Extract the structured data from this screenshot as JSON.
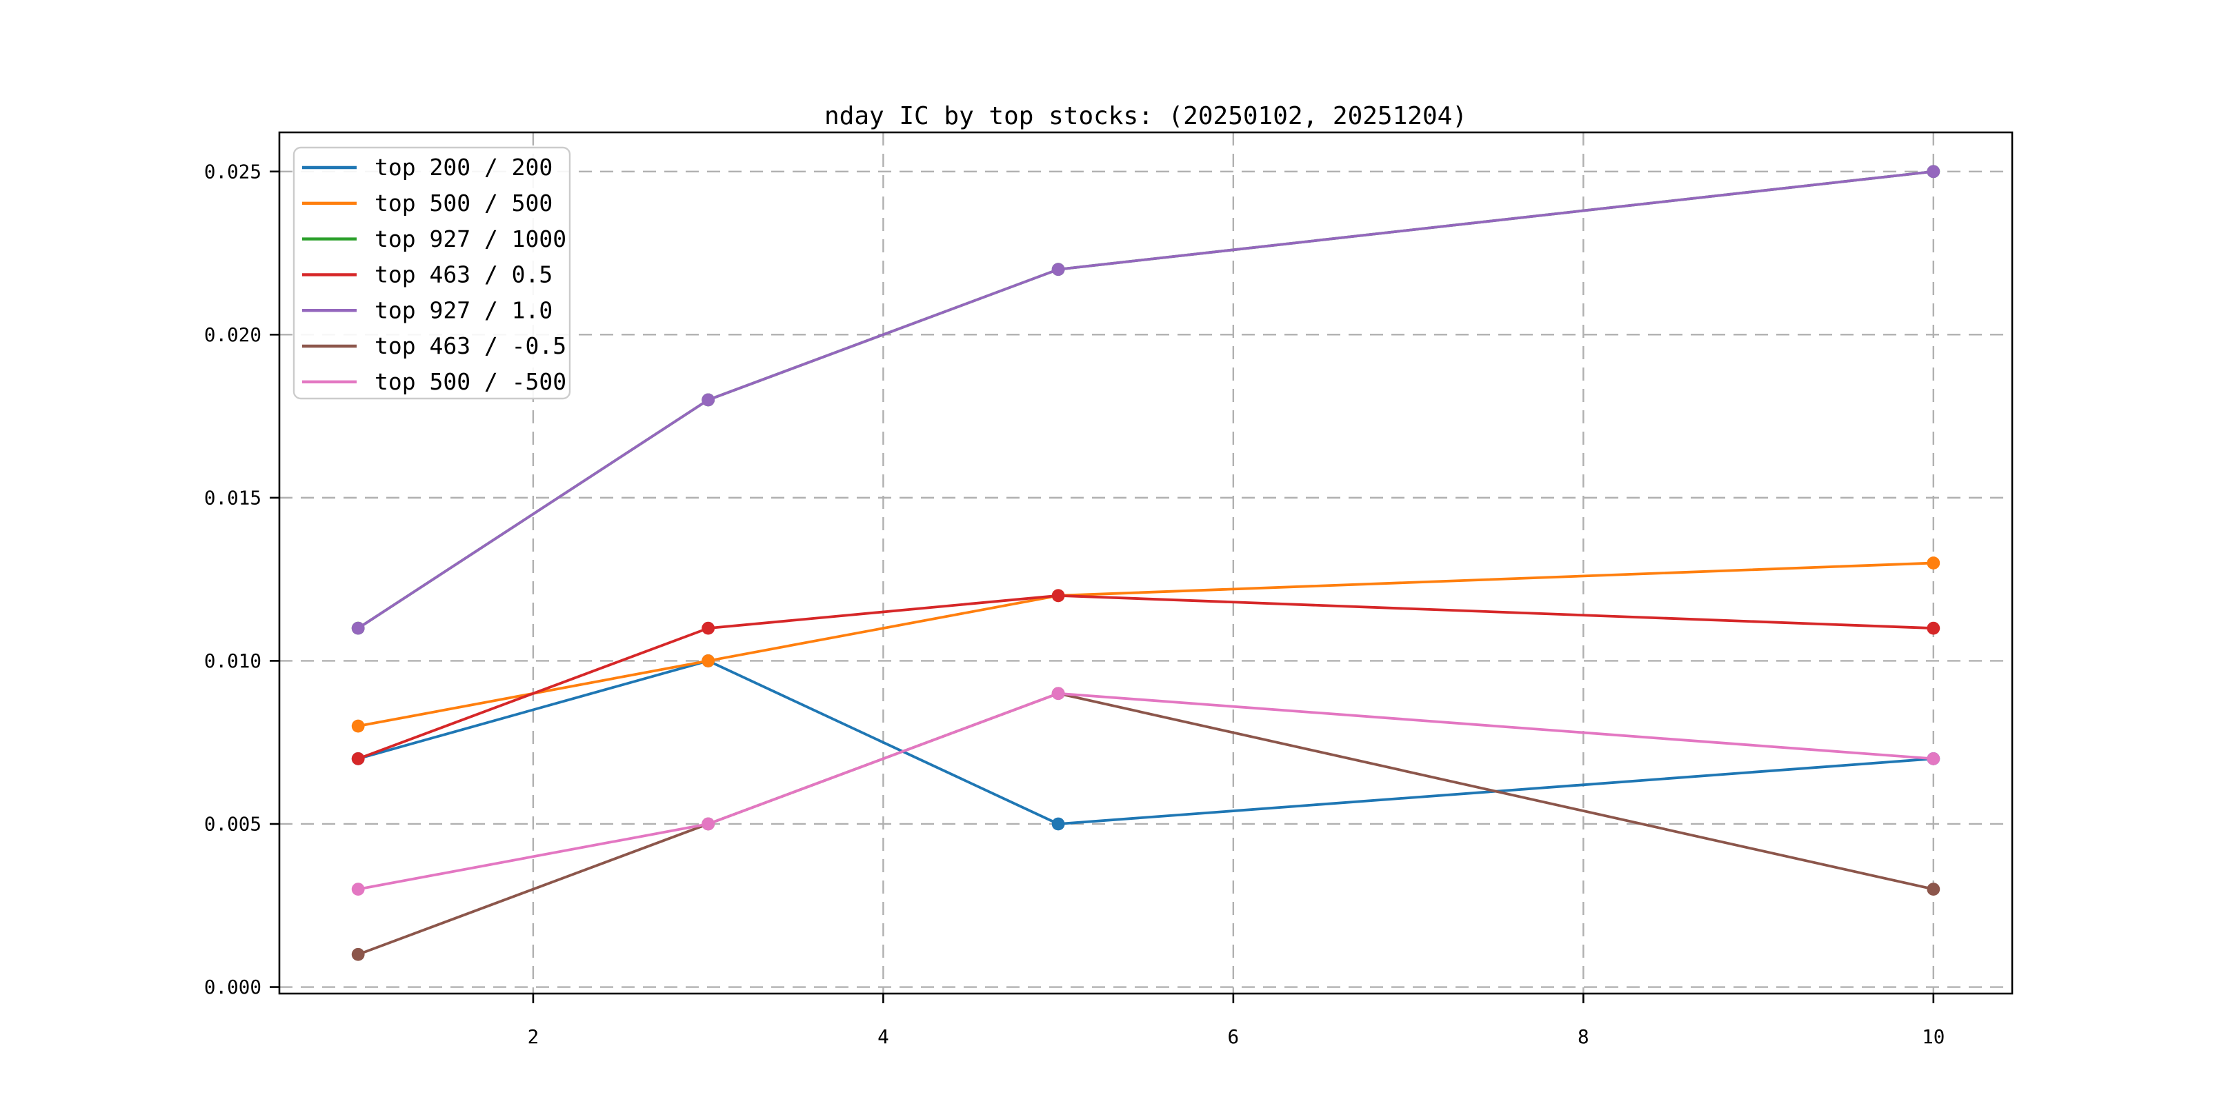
{
  "chart_data": {
    "type": "line",
    "title": "nday IC by top stocks: (20250102, 20251204)",
    "x": [
      1,
      3,
      5,
      10
    ],
    "series": [
      {
        "name": "top 200 / 200",
        "color": "#1f77b4",
        "values": [
          0.007,
          0.01,
          0.005,
          0.007
        ]
      },
      {
        "name": "top 500 / 500",
        "color": "#ff7f0e",
        "values": [
          0.008,
          0.01,
          0.012,
          0.013
        ]
      },
      {
        "name": "top 927 / 1000",
        "color": "#2ca02c",
        "values": [
          0.011,
          0.018,
          0.022,
          0.025
        ]
      },
      {
        "name": "top 463 / 0.5",
        "color": "#d62728",
        "values": [
          0.007,
          0.011,
          0.012,
          0.011
        ]
      },
      {
        "name": "top 927 / 1.0",
        "color": "#9467bd",
        "values": [
          0.011,
          0.018,
          0.022,
          0.025
        ]
      },
      {
        "name": "top 463 / -0.5",
        "color": "#8c564b",
        "values": [
          0.001,
          0.005,
          0.009,
          0.003
        ]
      },
      {
        "name": "top 500 / -500",
        "color": "#e377c2",
        "values": [
          0.003,
          0.005,
          0.009,
          0.007
        ]
      }
    ],
    "xlabel": "",
    "ylabel": "",
    "xlim": [
      0.55,
      10.45
    ],
    "ylim": [
      -0.0002,
      0.0262
    ],
    "xticks": [
      2,
      4,
      6,
      8,
      10
    ],
    "xtick_labels": [
      "2",
      "4",
      "6",
      "8",
      "10"
    ],
    "yticks": [
      0.0,
      0.005,
      0.01,
      0.015,
      0.02,
      0.025
    ],
    "ytick_labels": [
      "0.000",
      "0.005",
      "0.010",
      "0.015",
      "0.020",
      "0.025"
    ],
    "grid": "dashed",
    "grid_color": "#b0b0b0",
    "spine_color": "#000000",
    "legend_position": "upper-left",
    "marker": "circle",
    "note": "green series (top 927 / 1000) is fully occluded by purple (top 927 / 1.0): identical values; pink overlaps brown between x=3 and x=5"
  }
}
